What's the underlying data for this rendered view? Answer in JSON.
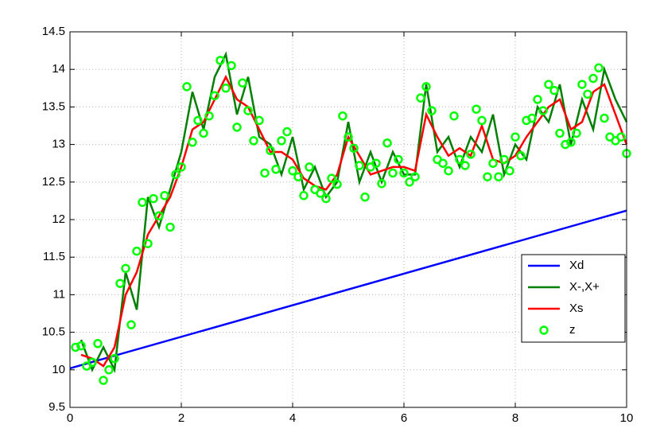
{
  "chart_data": {
    "type": "line",
    "xlim": [
      0,
      10
    ],
    "ylim": [
      9.5,
      14.5
    ],
    "xticks": [
      0,
      2,
      4,
      6,
      8,
      10
    ],
    "yticks": [
      9.5,
      10,
      10.5,
      11,
      11.5,
      12,
      12.5,
      13,
      13.5,
      14,
      14.5
    ],
    "grid": true,
    "legend": "right",
    "series": [
      {
        "name": "Xd",
        "color": "#0000ff",
        "x": [
          0,
          10
        ],
        "values": [
          10.02,
          12.12
        ]
      },
      {
        "name": "X-,X+",
        "color": "#007f00",
        "x": [
          0.2,
          0.4,
          0.6,
          0.8,
          1.0,
          1.2,
          1.4,
          1.6,
          1.8,
          2.0,
          2.2,
          2.4,
          2.6,
          2.8,
          3.0,
          3.2,
          3.4,
          3.6,
          3.8,
          4.0,
          4.2,
          4.4,
          4.6,
          4.8,
          5.0,
          5.2,
          5.4,
          5.6,
          5.8,
          6.0,
          6.2,
          6.4,
          6.6,
          6.8,
          7.0,
          7.2,
          7.4,
          7.6,
          7.8,
          8.0,
          8.2,
          8.4,
          8.6,
          8.8,
          9.0,
          9.2,
          9.4,
          9.6,
          9.8,
          10.0
        ],
        "values": [
          10.4,
          10.0,
          10.3,
          10.0,
          11.3,
          10.8,
          12.3,
          11.9,
          12.4,
          12.9,
          13.7,
          13.2,
          13.9,
          14.2,
          13.4,
          13.9,
          13.1,
          13.0,
          12.6,
          13.1,
          12.4,
          12.7,
          12.3,
          12.5,
          13.3,
          12.5,
          12.9,
          12.5,
          12.9,
          12.6,
          12.6,
          13.8,
          12.9,
          13.1,
          12.7,
          13.1,
          12.9,
          13.4,
          12.6,
          13.0,
          12.8,
          13.5,
          13.3,
          13.8,
          13.0,
          13.6,
          13.2,
          14.0,
          13.6,
          13.3
        ]
      },
      {
        "name": "Xs",
        "color": "#ff0000",
        "x": [
          0.2,
          0.4,
          0.6,
          0.8,
          1.0,
          1.2,
          1.4,
          1.6,
          1.8,
          2.0,
          2.2,
          2.4,
          2.6,
          2.8,
          3.0,
          3.2,
          3.4,
          3.6,
          3.8,
          4.0,
          4.2,
          4.4,
          4.6,
          4.8,
          5.0,
          5.2,
          5.4,
          5.6,
          5.8,
          6.0,
          6.2,
          6.4,
          6.6,
          6.8,
          7.0,
          7.2,
          7.4,
          7.6,
          7.8,
          8.0,
          8.2,
          8.4,
          8.6,
          8.8,
          9.0,
          9.2,
          9.4,
          9.6,
          9.8,
          10.0
        ],
        "values": [
          10.2,
          10.15,
          10.05,
          10.3,
          11.0,
          11.3,
          11.8,
          12.05,
          12.3,
          12.7,
          13.2,
          13.3,
          13.6,
          13.9,
          13.6,
          13.5,
          13.2,
          12.9,
          12.9,
          12.8,
          12.55,
          12.45,
          12.4,
          12.6,
          13.1,
          12.85,
          12.6,
          12.65,
          12.7,
          12.7,
          12.65,
          13.4,
          13.1,
          12.85,
          12.95,
          12.85,
          13.25,
          12.8,
          12.75,
          12.85,
          13.1,
          13.3,
          13.5,
          13.6,
          13.2,
          13.3,
          13.7,
          13.8,
          13.4,
          13.0
        ]
      },
      {
        "name": "z",
        "color": "#00ff00",
        "marker": "o",
        "x": [
          0.1,
          0.2,
          0.3,
          0.4,
          0.5,
          0.6,
          0.7,
          0.8,
          0.9,
          1.0,
          1.1,
          1.2,
          1.3,
          1.4,
          1.5,
          1.6,
          1.7,
          1.8,
          1.9,
          2.0,
          2.1,
          2.2,
          2.3,
          2.4,
          2.5,
          2.6,
          2.7,
          2.8,
          2.9,
          3.0,
          3.1,
          3.2,
          3.3,
          3.4,
          3.5,
          3.6,
          3.7,
          3.8,
          3.9,
          4.0,
          4.1,
          4.2,
          4.3,
          4.4,
          4.5,
          4.6,
          4.7,
          4.8,
          4.9,
          5.0,
          5.1,
          5.2,
          5.3,
          5.4,
          5.5,
          5.6,
          5.7,
          5.8,
          5.9,
          6.0,
          6.1,
          6.2,
          6.3,
          6.4,
          6.5,
          6.6,
          6.7,
          6.8,
          6.9,
          7.0,
          7.1,
          7.2,
          7.3,
          7.4,
          7.5,
          7.6,
          7.7,
          7.8,
          7.9,
          8.0,
          8.1,
          8.2,
          8.3,
          8.4,
          8.5,
          8.6,
          8.7,
          8.8,
          8.9,
          9.0,
          9.1,
          9.2,
          9.3,
          9.4,
          9.5,
          9.6,
          9.7,
          9.8,
          9.9,
          10.0
        ],
        "values": [
          10.3,
          10.32,
          10.05,
          10.1,
          10.35,
          9.86,
          10.0,
          10.15,
          11.15,
          11.35,
          10.6,
          11.58,
          12.23,
          11.68,
          12.28,
          12.05,
          12.32,
          11.9,
          12.6,
          12.7,
          13.77,
          13.03,
          13.32,
          13.15,
          13.38,
          13.65,
          14.12,
          13.75,
          14.05,
          13.23,
          13.82,
          13.45,
          13.05,
          13.32,
          12.62,
          12.92,
          12.67,
          13.05,
          13.17,
          12.65,
          12.57,
          12.32,
          12.7,
          12.4,
          12.35,
          12.28,
          12.55,
          12.47,
          13.38,
          13.1,
          12.95,
          12.72,
          12.3,
          12.7,
          12.75,
          12.48,
          13.02,
          12.62,
          12.8,
          12.62,
          12.5,
          12.57,
          13.62,
          13.77,
          13.45,
          12.8,
          12.75,
          12.65,
          13.38,
          12.8,
          12.72,
          12.87,
          13.47,
          13.32,
          12.57,
          12.75,
          12.57,
          12.8,
          12.65,
          13.1,
          12.85,
          13.32,
          13.35,
          13.6,
          13.45,
          13.8,
          13.72,
          13.15,
          13.0,
          13.03,
          13.15,
          13.8,
          13.67,
          13.88,
          14.02,
          13.35,
          13.1,
          13.05,
          13.1,
          12.88
        ]
      }
    ]
  }
}
